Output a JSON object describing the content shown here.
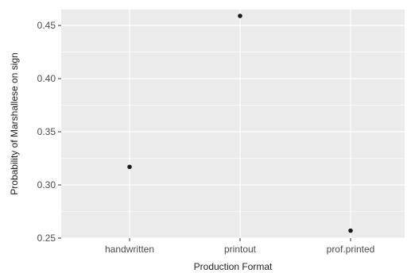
{
  "chart_data": {
    "type": "scatter",
    "title": "",
    "xlabel": "Production Format",
    "ylabel": "Probability of Marshallese on sign",
    "categories": [
      "handwritten",
      "printout",
      "prof.printed"
    ],
    "values": [
      0.317,
      0.459,
      0.257
    ],
    "ylim": [
      0.25,
      0.465
    ],
    "yticks": [
      0.25,
      0.3,
      0.35,
      0.4,
      0.45
    ],
    "ytick_labels": [
      "0.25",
      "0.30",
      "0.35",
      "0.40",
      "0.45"
    ],
    "grid": true,
    "colors": {
      "panel_background": "#EBEBEB",
      "grid_line": "#FFFFFF",
      "point": "#1A1A1A"
    }
  }
}
